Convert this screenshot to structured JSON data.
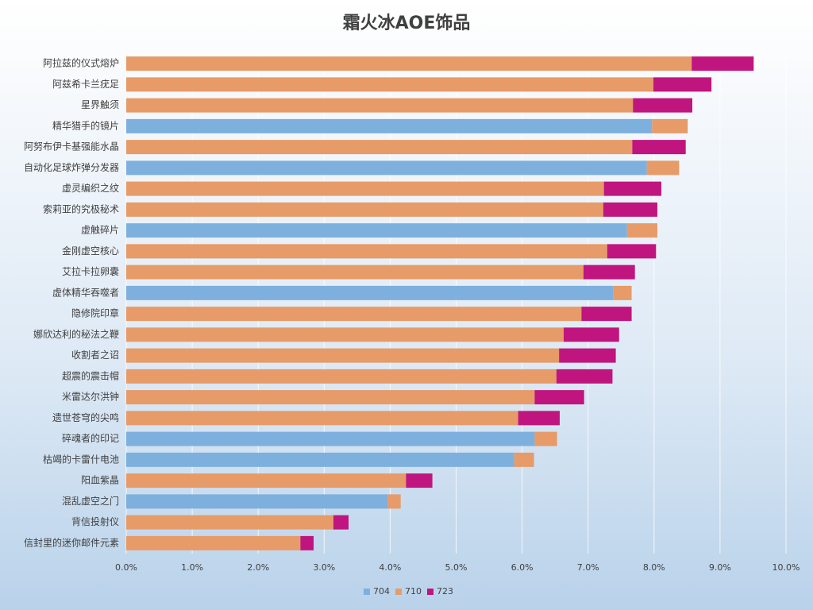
{
  "chart_data": {
    "type": "stacked-bar-horizontal",
    "title": "霜火冰AOE饰品",
    "categories": [
      "阿拉兹的仪式熔炉",
      "阿兹希卡兰疣足",
      "星界触须",
      "精华猎手的镜片",
      "阿努布伊卡基强能水晶",
      "自动化足球炸弹分发器",
      "虚灵编织之纹",
      "索莉亚的究极秘术",
      "虚触碎片",
      "金刚虚空核心",
      "艾拉卡拉卵囊",
      "虚体精华吞噬者",
      "隐修院印章",
      "娜欣达利的秘法之鞭",
      "收割者之诏",
      "超震的震击帽",
      "米雷达尔洪钟",
      "遗世苍穹的尖鸣",
      "碎魂者的印记",
      "枯竭的卡雷什电池",
      "阳血紫晶",
      "混乱虚空之门",
      "背信投射仪",
      "信封里的迷你邮件元素"
    ],
    "series": [
      {
        "name": "704",
        "color": "#7eb0de",
        "values": [
          null,
          null,
          null,
          7.97,
          null,
          7.89,
          null,
          null,
          7.59,
          null,
          null,
          7.38,
          null,
          null,
          null,
          null,
          null,
          null,
          6.19,
          5.88,
          null,
          3.96,
          null,
          null
        ]
      },
      {
        "name": "710",
        "color": "#e69b68",
        "values": [
          8.57,
          7.99,
          7.68,
          0.54,
          7.67,
          0.49,
          7.24,
          7.23,
          0.46,
          7.29,
          6.93,
          0.28,
          6.9,
          6.63,
          6.56,
          6.52,
          6.19,
          5.94,
          0.34,
          0.3,
          4.24,
          0.2,
          3.14,
          2.64
        ]
      },
      {
        "name": "723",
        "color": "#c0157e",
        "values": [
          0.94,
          0.88,
          0.9,
          null,
          0.81,
          null,
          0.87,
          0.82,
          null,
          0.74,
          0.78,
          null,
          0.76,
          0.84,
          0.86,
          0.85,
          0.75,
          0.63,
          null,
          null,
          0.4,
          null,
          0.23,
          0.2
        ]
      }
    ],
    "xlim": [
      0,
      10
    ],
    "xticks": [
      {
        "value": 0,
        "label": "0.0%"
      },
      {
        "value": 1,
        "label": "1.0%"
      },
      {
        "value": 2,
        "label": "2.0%"
      },
      {
        "value": 3,
        "label": "3.0%"
      },
      {
        "value": 4,
        "label": "4.0%"
      },
      {
        "value": 5,
        "label": "5.0%"
      },
      {
        "value": 6,
        "label": "6.0%"
      },
      {
        "value": 7,
        "label": "7.0%"
      },
      {
        "value": 8,
        "label": "8.0%"
      },
      {
        "value": 9,
        "label": "9.0%"
      },
      {
        "value": 10,
        "label": "10.0%"
      }
    ],
    "grid": true,
    "legend": "bottom"
  }
}
